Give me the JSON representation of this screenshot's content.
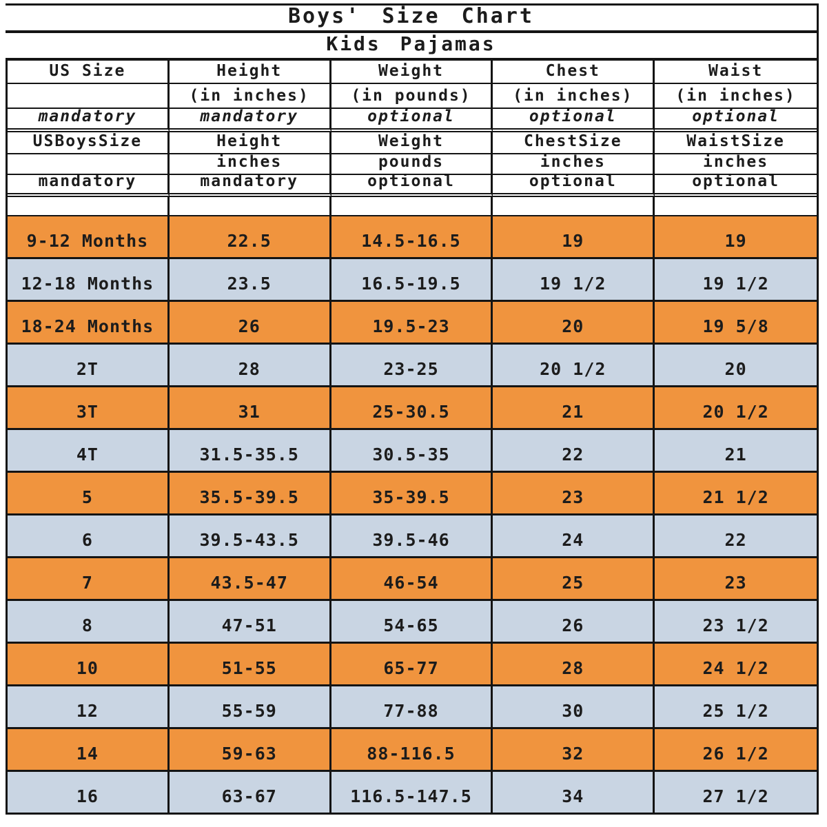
{
  "title": "Boys' Size Chart",
  "subtitle": "Kids Pajamas",
  "colors": {
    "orange_row": "#F0943E",
    "blue_row": "#C9D5E3",
    "border": "#141414",
    "text": "#1c1c1c",
    "background": "#ffffff"
  },
  "header_rows": [
    {
      "style": "bold",
      "cells": [
        "US Size",
        "Height",
        "Weight",
        "Chest",
        "Waist"
      ]
    },
    {
      "style": "bold",
      "cells": [
        "",
        "(in inches)",
        "(in pounds)",
        "(in inches)",
        "(in inches)"
      ]
    },
    {
      "style": "italic",
      "cells": [
        "mandatory",
        "mandatory",
        "optional",
        "optional",
        "optional"
      ]
    },
    {
      "style": "bold",
      "cells": [
        "USBoysSize",
        "Height",
        "Weight",
        "ChestSize",
        "WaistSize"
      ]
    },
    {
      "style": "bold",
      "cells": [
        "",
        "inches",
        "pounds",
        "inches",
        "inches"
      ]
    },
    {
      "style": "bold",
      "cells": [
        "mandatory",
        "mandatory",
        "optional",
        "optional",
        "optional"
      ]
    }
  ],
  "chart_data": {
    "type": "table",
    "title": "Boys' Size Chart",
    "subtitle": "Kids Pajamas",
    "columns": [
      "US Size",
      "Height (in inches)",
      "Weight (in pounds)",
      "Chest (in inches)",
      "Waist (in inches)"
    ]
  },
  "rows": [
    {
      "us_size": "9-12 Months",
      "height": "22.5",
      "weight": "14.5-16.5",
      "chest": "19",
      "waist": "19",
      "shade": "orange"
    },
    {
      "us_size": "12-18 Months",
      "height": "23.5",
      "weight": "16.5-19.5",
      "chest": "19 1/2",
      "waist": "19 1/2",
      "shade": "blue"
    },
    {
      "us_size": "18-24 Months",
      "height": "26",
      "weight": "19.5-23",
      "chest": "20",
      "waist": "19 5/8",
      "shade": "orange"
    },
    {
      "us_size": "2T",
      "height": "28",
      "weight": "23-25",
      "chest": "20 1/2",
      "waist": "20",
      "shade": "blue"
    },
    {
      "us_size": "3T",
      "height": "31",
      "weight": "25-30.5",
      "chest": "21",
      "waist": "20 1/2",
      "shade": "orange"
    },
    {
      "us_size": "4T",
      "height": "31.5-35.5",
      "weight": "30.5-35",
      "chest": "22",
      "waist": "21",
      "shade": "blue"
    },
    {
      "us_size": "5",
      "height": "35.5-39.5",
      "weight": "35-39.5",
      "chest": "23",
      "waist": "21 1/2",
      "shade": "orange"
    },
    {
      "us_size": "6",
      "height": "39.5-43.5",
      "weight": "39.5-46",
      "chest": "24",
      "waist": "22",
      "shade": "blue"
    },
    {
      "us_size": "7",
      "height": "43.5-47",
      "weight": "46-54",
      "chest": "25",
      "waist": "23",
      "shade": "orange"
    },
    {
      "us_size": "8",
      "height": "47-51",
      "weight": "54-65",
      "chest": "26",
      "waist": "23 1/2",
      "shade": "blue"
    },
    {
      "us_size": "10",
      "height": "51-55",
      "weight": "65-77",
      "chest": "28",
      "waist": "24 1/2",
      "shade": "orange"
    },
    {
      "us_size": "12",
      "height": "55-59",
      "weight": "77-88",
      "chest": "30",
      "waist": "25 1/2",
      "shade": "blue"
    },
    {
      "us_size": "14",
      "height": "59-63",
      "weight": "88-116.5",
      "chest": "32",
      "waist": "26 1/2",
      "shade": "orange"
    },
    {
      "us_size": "16",
      "height": "63-67",
      "weight": "116.5-147.5",
      "chest": "34",
      "waist": "27 1/2",
      "shade": "blue"
    }
  ]
}
